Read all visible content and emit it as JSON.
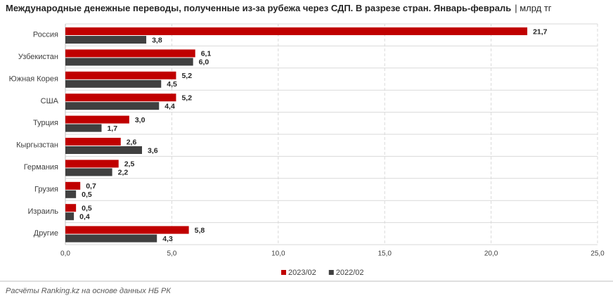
{
  "chart_data": {
    "type": "hbar",
    "title": "Международные денежные переводы, полученные из-за рубежа через СДП. В разрезе стран. Январь-февраль",
    "unit": "| млрд тг",
    "source": "Расчёты Ranking.kz на основе данных НБ РК",
    "categories": [
      "Россия",
      "Узбекистан",
      "Южная Корея",
      "США",
      "Турция",
      "Кыргызстан",
      "Германия",
      "Грузия",
      "Израиль",
      "Другие"
    ],
    "series": [
      {
        "name": "2023/02",
        "color": "#c00000",
        "values": [
          21.7,
          6.1,
          5.2,
          5.2,
          3.0,
          2.6,
          2.5,
          0.7,
          0.5,
          5.8
        ],
        "value_labels": [
          "21,7",
          "6,1",
          "5,2",
          "5,2",
          "3,0",
          "2,6",
          "2,5",
          "0,7",
          "0,5",
          "5,8"
        ]
      },
      {
        "name": "2022/02",
        "color": "#404040",
        "values": [
          3.8,
          6.0,
          4.5,
          4.4,
          1.7,
          3.6,
          2.2,
          0.5,
          0.4,
          4.3
        ],
        "value_labels": [
          "3,8",
          "6,0",
          "4,5",
          "4,4",
          "1,7",
          "3,6",
          "2,2",
          "0,5",
          "0,4",
          "4,3"
        ]
      }
    ],
    "xlim": [
      0,
      25
    ],
    "xticks": [
      {
        "value": 0,
        "label": "0,0"
      },
      {
        "value": 5,
        "label": "5,0"
      },
      {
        "value": 10,
        "label": "10,0"
      },
      {
        "value": 15,
        "label": "15,0"
      },
      {
        "value": 20,
        "label": "20,0"
      },
      {
        "value": 25,
        "label": "25,0"
      }
    ],
    "grid": true
  }
}
